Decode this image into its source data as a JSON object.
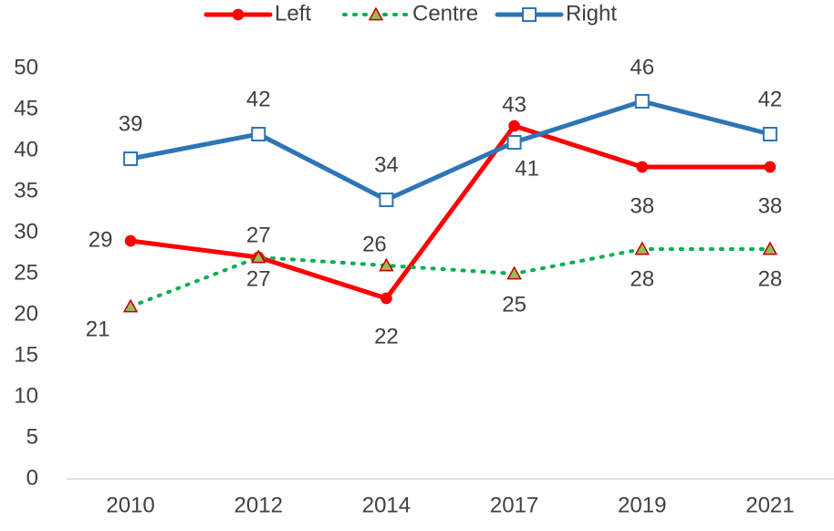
{
  "chart_data": {
    "type": "line",
    "categories": [
      "2010",
      "2012",
      "2014",
      "2017",
      "2019",
      "2021"
    ],
    "series": [
      {
        "name": "Left",
        "color": "#ff0000",
        "style": "solid",
        "marker": "circle",
        "marker_fill": "#ff0000",
        "marker_stroke": "#ff0000",
        "values": [
          29,
          27,
          22,
          43,
          38,
          38
        ]
      },
      {
        "name": "Centre",
        "color": "#00b050",
        "style": "dotted",
        "marker": "triangle",
        "marker_fill": "#9bbb59",
        "marker_stroke": "#c00000",
        "values": [
          21,
          27,
          26,
          25,
          28,
          28
        ]
      },
      {
        "name": "Right",
        "color": "#2e75b6",
        "style": "solid",
        "marker": "square",
        "marker_fill": "#ffffff",
        "marker_stroke": "#2e75b6",
        "values": [
          39,
          42,
          34,
          41,
          46,
          42
        ]
      }
    ],
    "ylim": [
      0,
      50
    ],
    "yticks": [
      0,
      5,
      10,
      15,
      20,
      25,
      30,
      35,
      40,
      45,
      50
    ],
    "grid": false,
    "legend": "top"
  }
}
